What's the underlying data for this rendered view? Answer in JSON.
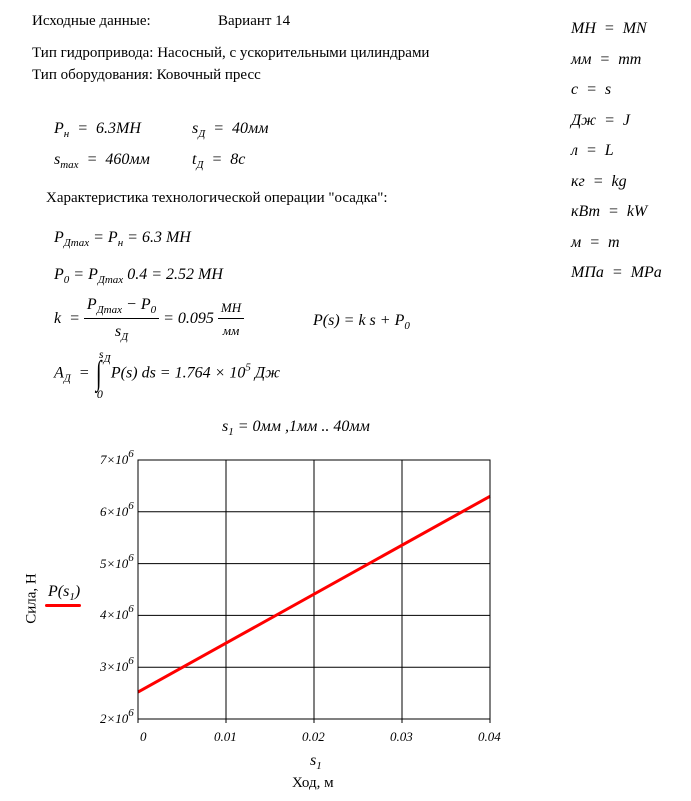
{
  "header": {
    "source_label": "Исходные данные:",
    "variant": "Вариант 14",
    "drive_type": "Тип гидропривода: Насосный, с ускорительными цилиндрами",
    "equipment_type": "Тип оборудования: Ковочный пресс"
  },
  "units": [
    {
      "lhs": "МН",
      "rhs": "MN"
    },
    {
      "lhs": "мм",
      "rhs": "mm"
    },
    {
      "lhs": "с",
      "rhs": "s"
    },
    {
      "lhs": "Дж",
      "rhs": "J"
    },
    {
      "lhs": "л",
      "rhs": "L"
    },
    {
      "lhs": "кг",
      "rhs": "kg"
    },
    {
      "lhs": "кВт",
      "rhs": "kW"
    },
    {
      "lhs": "м",
      "rhs": "m"
    },
    {
      "lhs": "МПа",
      "rhs": "MPa"
    }
  ],
  "inputs": {
    "Pn": {
      "sym": "P",
      "sub": "н",
      "value": "6.3МН"
    },
    "sD": {
      "sym": "s",
      "sub": "Д",
      "value": "40мм"
    },
    "smax": {
      "sym": "s",
      "sub": "max",
      "value": "460мм"
    },
    "tD": {
      "sym": "t",
      "sub": "Д",
      "value": "8с"
    }
  },
  "section_title": "Характеристика технологической операции \"осадка\":",
  "equations": {
    "pdmax": {
      "lhs_sym": "P",
      "lhs_sub": "Дmax",
      "mid_sym": "P",
      "mid_sub": "н",
      "result": "6.3",
      "unit": "МН"
    },
    "p0": {
      "lhs_sym": "P",
      "lhs_sub": "0",
      "rhs_sym": "P",
      "rhs_sub": "Дmax",
      "factor": "0.4",
      "result": "2.52",
      "unit": "МН"
    },
    "k": {
      "lhs": "k",
      "num_a_sym": "P",
      "num_a_sub": "Дmax",
      "minus": "−",
      "num_b_sym": "P",
      "num_b_sub": "0",
      "den_sym": "s",
      "den_sub": "Д",
      "result": "0.095",
      "unit_num": "МН",
      "unit_den": "мм"
    },
    "ps": {
      "text": "P(s) = k s + P",
      "sub": "0"
    },
    "ad": {
      "lhs_sym": "A",
      "lhs_sub": "Д",
      "upper_sym": "s",
      "upper_sub": "Д",
      "lower": "0",
      "integrand": "P(s) ds = 1.764 × 10",
      "exp": "5",
      "unit": "Дж"
    },
    "range": {
      "sym": "s",
      "sub": "1",
      "text": "= 0мм ,1мм .. 40мм"
    }
  },
  "chart_data": {
    "type": "line",
    "xlabel": "Ход, м",
    "x_var": "s",
    "x_var_sub": "1",
    "ylabel": "Сила, Н",
    "legend": {
      "name": "P(s",
      "sub": "1",
      "close": ")",
      "placement": "left"
    },
    "xlim": [
      0,
      0.04
    ],
    "ylim": [
      2000000,
      7000000
    ],
    "x_ticks": [
      "0",
      "0.01",
      "0.02",
      "0.03",
      "0.04"
    ],
    "y_ticks": [
      {
        "mant": "2×10",
        "exp": "6"
      },
      {
        "mant": "3×10",
        "exp": "6"
      },
      {
        "mant": "4×10",
        "exp": "6"
      },
      {
        "mant": "5×10",
        "exp": "6"
      },
      {
        "mant": "6×10",
        "exp": "6"
      },
      {
        "mant": "7×10",
        "exp": "6"
      }
    ],
    "grid": true,
    "series": [
      {
        "color": "#ff0000",
        "x": [
          0,
          0.04
        ],
        "y": [
          2520000,
          6300000
        ]
      }
    ]
  }
}
